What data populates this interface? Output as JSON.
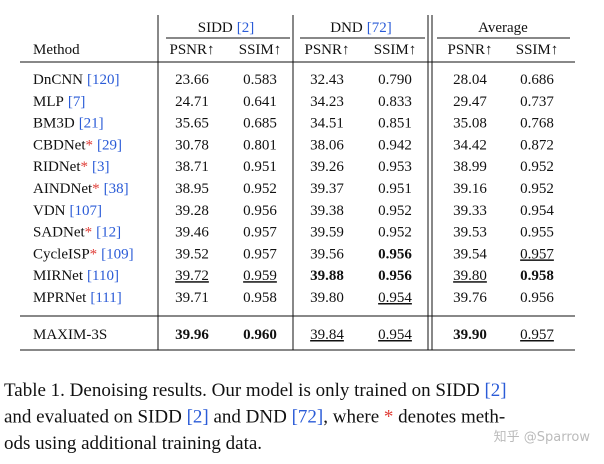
{
  "table": {
    "method_header": "Method",
    "groups": [
      {
        "name": "SIDD",
        "cite": "[2]"
      },
      {
        "name": "DND",
        "cite": "[72]"
      },
      {
        "name": "Average"
      }
    ],
    "metrics": [
      "PSNR↑",
      "SSIM↑"
    ],
    "cite_color": "#2a5bd7",
    "mark_color": "#e0403a",
    "rows": [
      {
        "method": "DnCNN",
        "cite": "[120]",
        "values": [
          "23.66",
          "0.583",
          "32.43",
          "0.790",
          "28.04",
          "0.686"
        ]
      },
      {
        "method": "MLP",
        "cite": "[7]",
        "values": [
          "24.71",
          "0.641",
          "34.23",
          "0.833",
          "29.47",
          "0.737"
        ]
      },
      {
        "method": "BM3D",
        "cite": "[21]",
        "values": [
          "35.65",
          "0.685",
          "34.51",
          "0.851",
          "35.08",
          "0.768"
        ]
      },
      {
        "method": "CBDNet",
        "mark": "*",
        "cite": "[29]",
        "values": [
          "30.78",
          "0.801",
          "38.06",
          "0.942",
          "34.42",
          "0.872"
        ]
      },
      {
        "method": "RIDNet",
        "mark": "*",
        "cite": "[3]",
        "values": [
          "38.71",
          "0.951",
          "39.26",
          "0.953",
          "38.99",
          "0.952"
        ]
      },
      {
        "method": "AINDNet",
        "mark": "*",
        "cite": "[38]",
        "values": [
          "38.95",
          "0.952",
          "39.37",
          "0.951",
          "39.16",
          "0.952"
        ]
      },
      {
        "method": "VDN",
        "cite": "[107]",
        "values": [
          "39.28",
          "0.956",
          "39.38",
          "0.952",
          "39.33",
          "0.954"
        ]
      },
      {
        "method": "SADNet",
        "mark": "*",
        "cite": "[12]",
        "values": [
          "39.46",
          "0.957",
          "39.59",
          "0.952",
          "39.53",
          "0.955"
        ]
      },
      {
        "method": "CycleISP",
        "mark": "*",
        "cite": "[109]",
        "values": [
          "39.52",
          "0.957",
          "39.56",
          "0.956",
          "39.54",
          "0.957"
        ],
        "bold": [
          3
        ],
        "underline": [
          5
        ]
      },
      {
        "method": "MIRNet",
        "cite": "[110]",
        "values": [
          "39.72",
          "0.959",
          "39.88",
          "0.956",
          "39.80",
          "0.958"
        ],
        "bold": [
          2,
          3,
          5
        ],
        "underline": [
          0,
          1,
          4
        ]
      },
      {
        "method": "MPRNet",
        "cite": "[111]",
        "values": [
          "39.71",
          "0.958",
          "39.80",
          "0.954",
          "39.76",
          "0.956"
        ],
        "underline": [
          3
        ]
      }
    ],
    "final_row": {
      "method": "MAXIM-3S",
      "values": [
        "39.96",
        "0.960",
        "39.84",
        "0.954",
        "39.90",
        "0.957"
      ],
      "bold": [
        0,
        1,
        4
      ],
      "underline": [
        2,
        3,
        5
      ]
    }
  },
  "caption": {
    "lines": [
      [
        {
          "text": "Table 1. Denoising results. Our model is only trained on SIDD "
        },
        {
          "text": "[2]",
          "color": "#2a5bd7"
        }
      ],
      [
        {
          "text": "and evaluated on SIDD "
        },
        {
          "text": "[2]",
          "color": "#2a5bd7"
        },
        {
          "text": " and DND "
        },
        {
          "text": "[72]",
          "color": "#2a5bd7"
        },
        {
          "text": ", where "
        },
        {
          "text": "*",
          "color": "#e0403a"
        },
        {
          "text": " denotes meth-"
        }
      ],
      [
        {
          "text": "ods using additional training data."
        }
      ]
    ]
  },
  "watermark": "知乎 @Sparrow"
}
